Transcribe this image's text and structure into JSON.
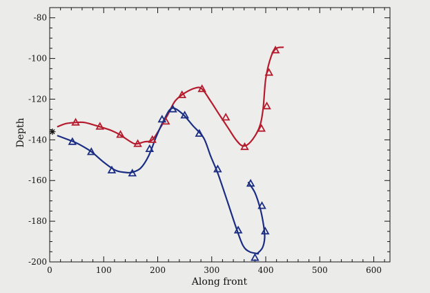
{
  "chart_data": {
    "type": "line",
    "title": "",
    "xlabel": "Along front",
    "ylabel": "Depth",
    "xlim": [
      0,
      630
    ],
    "ylim": [
      -200,
      -75
    ],
    "x_ticks": [
      0,
      100,
      200,
      300,
      400,
      500,
      600
    ],
    "y_ticks": [
      -200,
      -180,
      -160,
      -140,
      -120,
      -100,
      -80
    ],
    "grid": false,
    "legend": "none",
    "colors": {
      "red": "#b51b2c",
      "blue": "#1a2d82",
      "marker_star": "#111111"
    },
    "series": [
      {
        "color_key": "red",
        "curve": [
          [
            15,
            -133.5
          ],
          [
            30,
            -132
          ],
          [
            48,
            -131.5
          ],
          [
            65,
            -131.5
          ],
          [
            92,
            -133.5
          ],
          [
            115,
            -135.5
          ],
          [
            130,
            -137.5
          ],
          [
            150,
            -141
          ],
          [
            160,
            -142
          ],
          [
            175,
            -141
          ],
          [
            190,
            -140
          ],
          [
            205,
            -134
          ],
          [
            218,
            -128
          ],
          [
            232,
            -121
          ],
          [
            250,
            -117
          ],
          [
            270,
            -114.5
          ],
          [
            282,
            -115
          ],
          [
            298,
            -121
          ],
          [
            315,
            -128
          ],
          [
            330,
            -134
          ],
          [
            345,
            -140
          ],
          [
            358,
            -143
          ],
          [
            372,
            -141
          ],
          [
            388,
            -134
          ],
          [
            395,
            -125
          ],
          [
            400,
            -110
          ],
          [
            410,
            -99
          ],
          [
            420,
            -95
          ],
          [
            432,
            -94.5
          ]
        ],
        "markers": [
          [
            48,
            -131.5
          ],
          [
            93,
            -133.5
          ],
          [
            131,
            -137.5
          ],
          [
            163,
            -142
          ],
          [
            190,
            -140
          ],
          [
            215,
            -131
          ],
          [
            245,
            -118
          ],
          [
            282,
            -115
          ],
          [
            326,
            -129
          ],
          [
            361,
            -143.5
          ],
          [
            392,
            -134.5
          ],
          [
            402,
            -123.5
          ],
          [
            406,
            -107
          ],
          [
            418,
            -96
          ]
        ]
      },
      {
        "color_key": "blue",
        "curve": [
          [
            15,
            -138
          ],
          [
            30,
            -139.5
          ],
          [
            45,
            -141
          ],
          [
            60,
            -143
          ],
          [
            78,
            -146
          ],
          [
            100,
            -151
          ],
          [
            122,
            -155
          ],
          [
            140,
            -156
          ],
          [
            152,
            -156
          ],
          [
            168,
            -154
          ],
          [
            183,
            -148
          ],
          [
            198,
            -138
          ],
          [
            212,
            -130
          ],
          [
            226,
            -124.5
          ],
          [
            245,
            -127
          ],
          [
            265,
            -133
          ],
          [
            285,
            -139
          ],
          [
            298,
            -148
          ],
          [
            312,
            -157
          ],
          [
            330,
            -171
          ],
          [
            345,
            -183
          ],
          [
            358,
            -192
          ],
          [
            370,
            -195
          ],
          [
            386,
            -196
          ]
        ],
        "curve2": [
          [
            368,
            -161
          ],
          [
            380,
            -166
          ],
          [
            390,
            -174
          ],
          [
            396,
            -182
          ],
          [
            398,
            -188
          ],
          [
            394,
            -193
          ],
          [
            384,
            -196
          ]
        ],
        "markers": [
          [
            42,
            -141
          ],
          [
            77,
            -146
          ],
          [
            115,
            -155
          ],
          [
            153,
            -156.5
          ],
          [
            185,
            -144.5
          ],
          [
            208,
            -130
          ],
          [
            228,
            -125
          ],
          [
            250,
            -128
          ],
          [
            277,
            -137
          ],
          [
            311,
            -154.5
          ],
          [
            349,
            -184.5
          ],
          [
            380,
            -198
          ],
          [
            372,
            -161.5
          ],
          [
            393,
            -172.5
          ],
          [
            399,
            -185
          ]
        ]
      }
    ],
    "annotations": [
      {
        "type": "star-marker",
        "x": 5,
        "y": -136
      }
    ]
  }
}
